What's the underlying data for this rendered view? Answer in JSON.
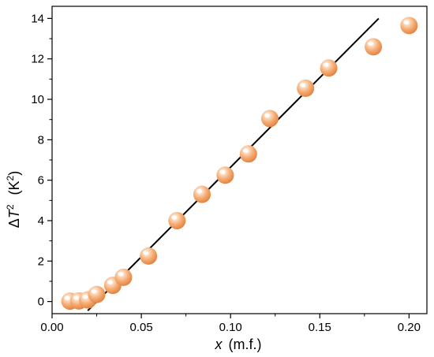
{
  "chart_data": {
    "type": "scatter",
    "xlabel": {
      "symbol": "x",
      "unit": "(m.f.)"
    },
    "ylabel": {
      "prefix": "Δ",
      "symbol": "T",
      "exponent": "2",
      "unit_open": "(K",
      "unit_exponent": "2",
      "unit_close": ")"
    },
    "xlim": [
      0.0,
      0.21
    ],
    "ylim": [
      -0.6,
      14.6
    ],
    "x_ticks": [
      0.0,
      0.05,
      0.1,
      0.15,
      0.2
    ],
    "x_tick_labels": [
      "0.00",
      "0.05",
      "0.10",
      "0.15",
      "0.20"
    ],
    "y_ticks": [
      0,
      2,
      4,
      6,
      8,
      10,
      12,
      14
    ],
    "y_tick_labels": [
      "0",
      "2",
      "4",
      "6",
      "8",
      "10",
      "12",
      "14"
    ],
    "grid": false,
    "legend": "none",
    "marker_color": "#f4a66c",
    "fit_line_color": "#000000",
    "series": [
      {
        "points": [
          [
            0.01,
            0.02
          ],
          [
            0.015,
            0.03
          ],
          [
            0.02,
            0.08
          ],
          [
            0.025,
            0.35
          ],
          [
            0.034,
            0.8
          ],
          [
            0.04,
            1.2
          ],
          [
            0.054,
            2.25
          ],
          [
            0.07,
            4.0
          ],
          [
            0.084,
            5.3
          ],
          [
            0.097,
            6.25
          ],
          [
            0.11,
            7.3
          ],
          [
            0.122,
            9.05
          ],
          [
            0.142,
            10.55
          ],
          [
            0.155,
            11.55
          ],
          [
            0.18,
            12.6
          ],
          [
            0.2,
            13.65
          ]
        ]
      }
    ],
    "fit_line": {
      "from": [
        0.02,
        -0.45
      ],
      "to": [
        0.183,
        14.0
      ]
    }
  }
}
